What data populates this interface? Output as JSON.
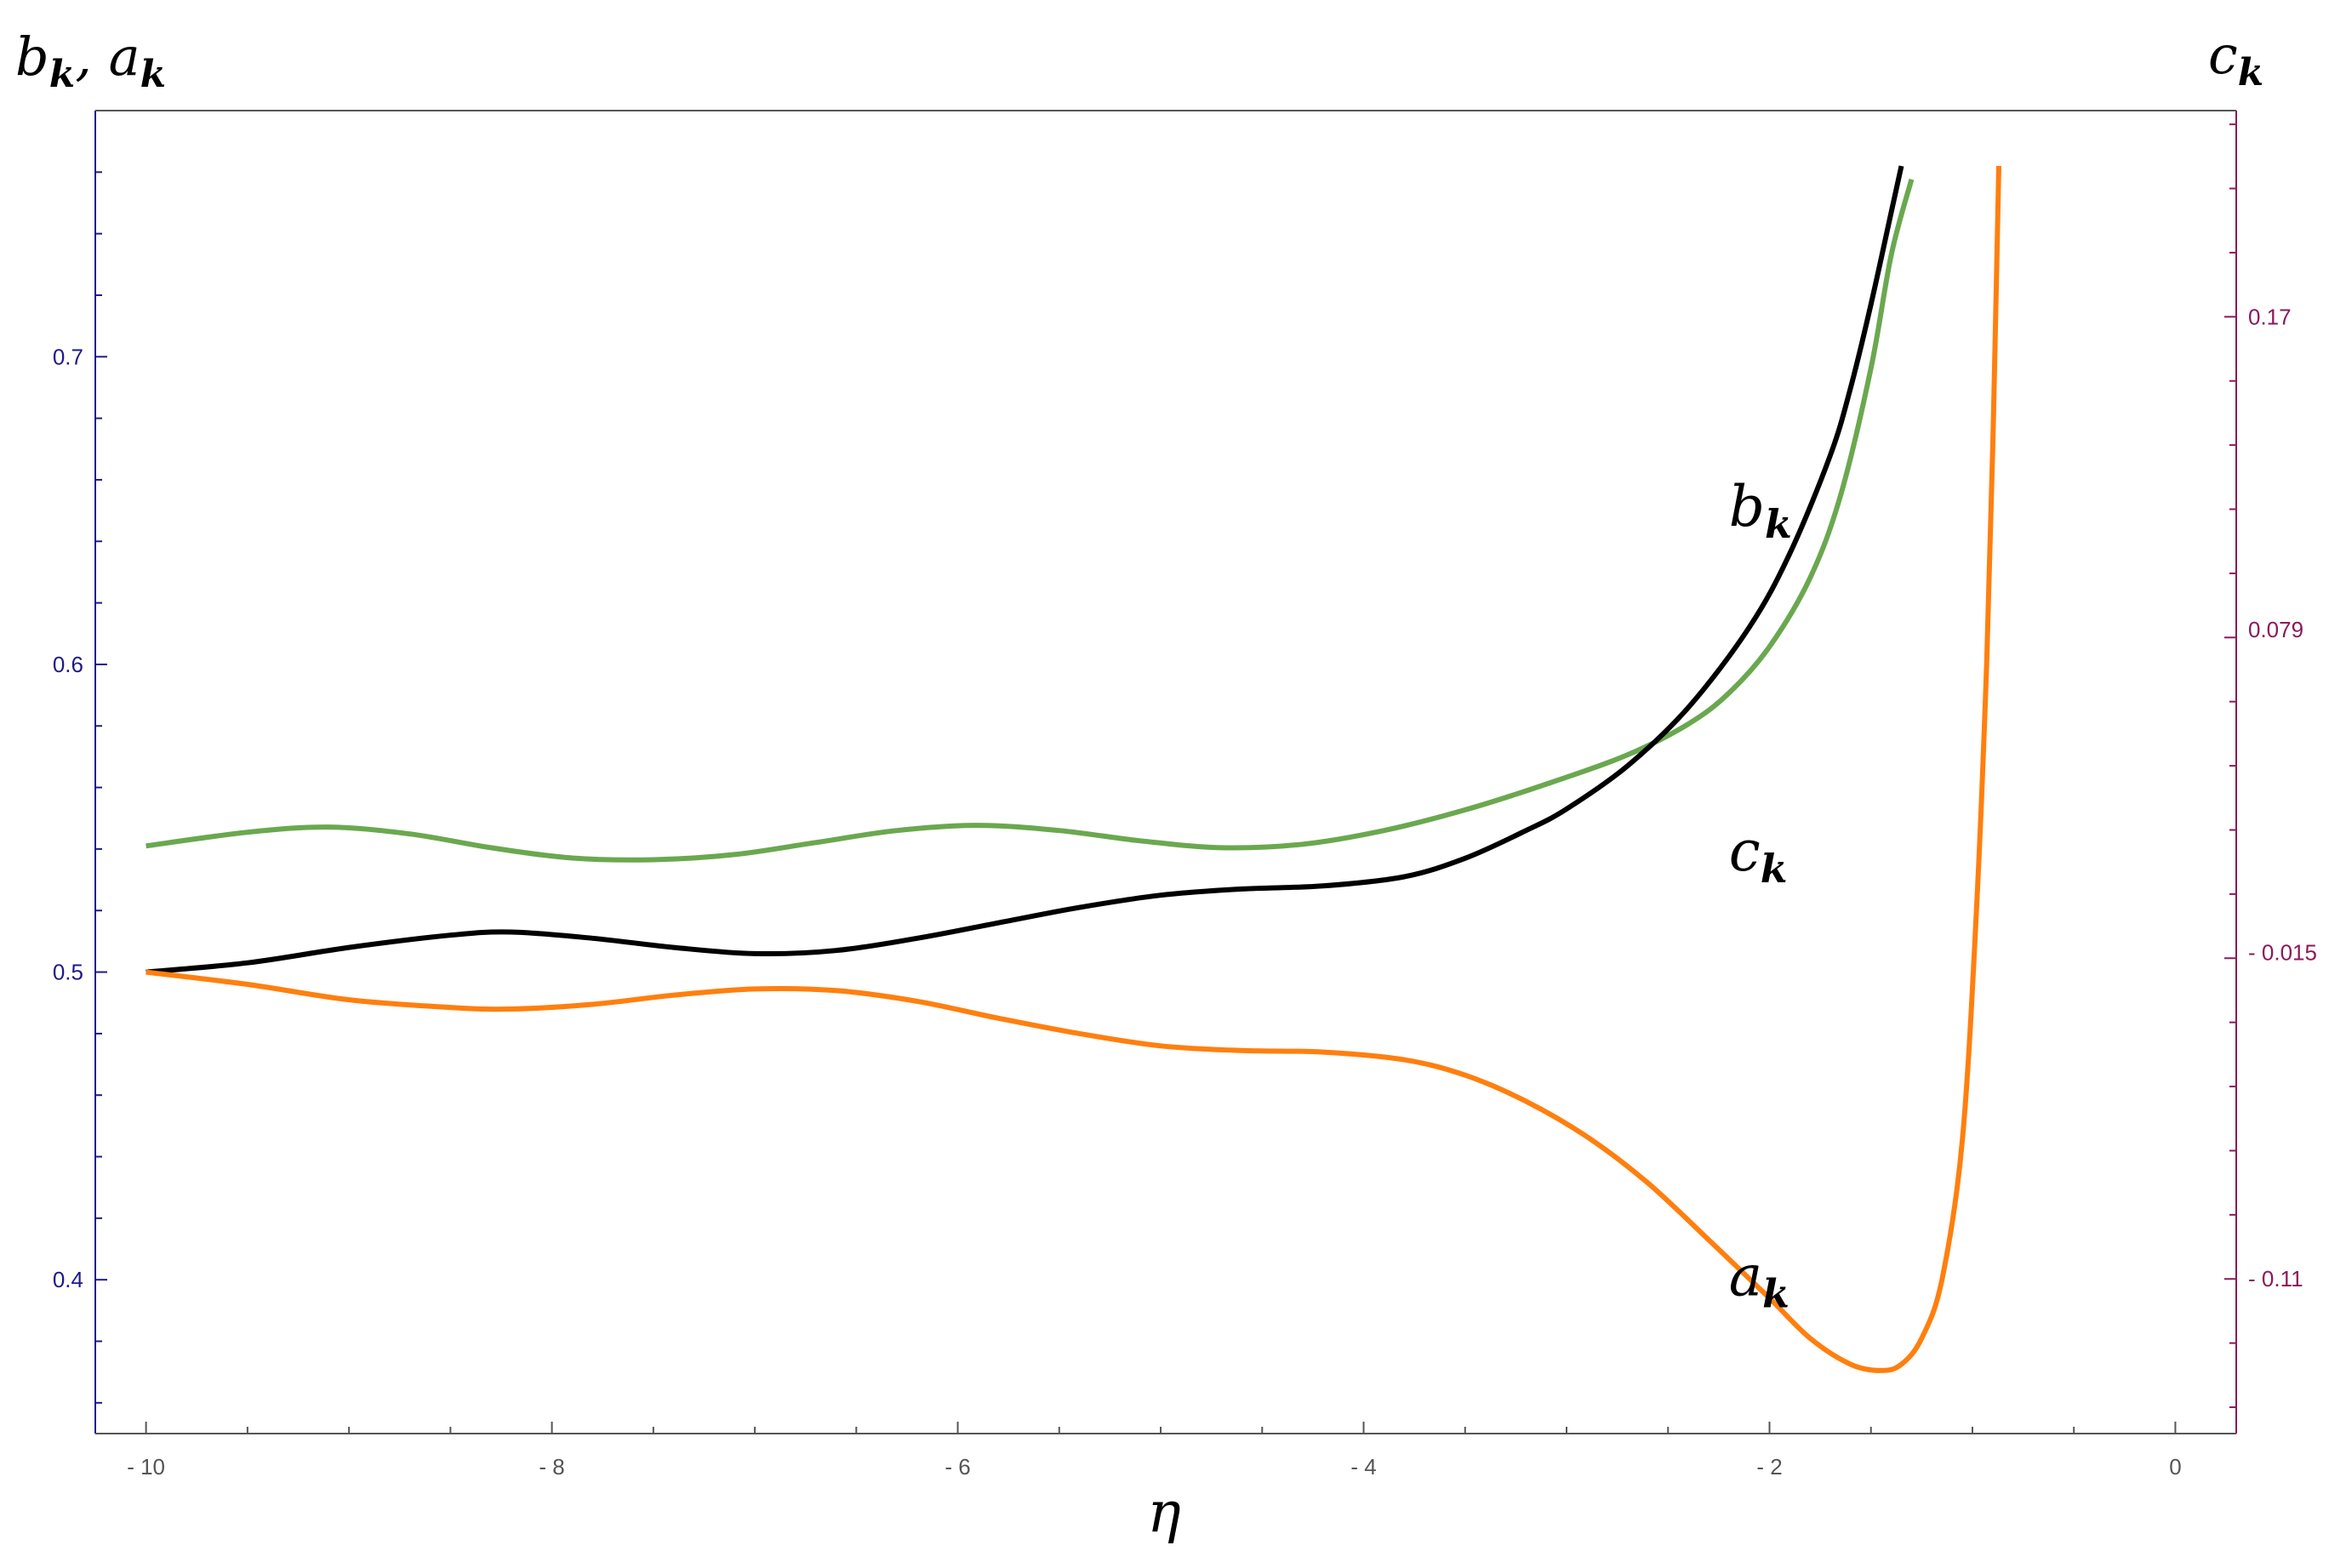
{
  "chart_data": {
    "type": "line",
    "left_axis_title": {
      "main": "b",
      "sub1": "k",
      "sep": ", ",
      "main2": "a",
      "sub2": "k"
    },
    "right_axis_title": {
      "main": "c",
      "sub": "k"
    },
    "xlabel": "η",
    "xlim": [
      -10.25,
      0.3
    ],
    "ylim_left": [
      0.35,
      0.78
    ],
    "ylim_right": [
      -0.155,
      0.23
    ],
    "x_ticks": [
      -10,
      -8,
      -6,
      -4,
      -2,
      0
    ],
    "x_tick_labels": [
      "- 10",
      "- 8",
      "- 6",
      "- 4",
      "- 2",
      "0"
    ],
    "y_left_ticks": [
      0.4,
      0.5,
      0.6,
      0.7
    ],
    "y_left_tick_labels": [
      "0.4",
      "0.5",
      "0.6",
      "0.7"
    ],
    "y_right_ticks": [
      -0.11,
      -0.015,
      0.079,
      0.17
    ],
    "y_right_tick_labels": [
      "- 0.11",
      "- 0.015",
      "0.079",
      "0.17"
    ],
    "colors": {
      "b": "#000000",
      "c": "#6aa84f",
      "a": "#ff7f0e",
      "left_axis": "#1f1a8a",
      "right_axis": "#8b1a5a",
      "bottom_axis": "#555555"
    },
    "series": [
      {
        "key": "b",
        "axis": "left",
        "points": [
          [
            -10,
            0.5
          ],
          [
            -9.5,
            0.503
          ],
          [
            -9,
            0.508
          ],
          [
            -8.5,
            0.512
          ],
          [
            -8.2,
            0.513
          ],
          [
            -7.8,
            0.511
          ],
          [
            -7.4,
            0.508
          ],
          [
            -7,
            0.506
          ],
          [
            -6.6,
            0.507
          ],
          [
            -6.2,
            0.511
          ],
          [
            -5.8,
            0.516
          ],
          [
            -5.4,
            0.521
          ],
          [
            -5,
            0.525
          ],
          [
            -4.6,
            0.527
          ],
          [
            -4.2,
            0.528
          ],
          [
            -3.8,
            0.531
          ],
          [
            -3.5,
            0.537
          ],
          [
            -3.2,
            0.546
          ],
          [
            -3,
            0.553
          ],
          [
            -2.7,
            0.567
          ],
          [
            -2.4,
            0.586
          ],
          [
            -2.1,
            0.612
          ],
          [
            -1.9,
            0.636
          ],
          [
            -1.7,
            0.668
          ],
          [
            -1.6,
            0.69
          ],
          [
            -1.5,
            0.717
          ],
          [
            -1.4,
            0.747
          ],
          [
            -1.35,
            0.762
          ]
        ]
      },
      {
        "key": "c",
        "axis": "right",
        "points": [
          [
            -10,
            0.016
          ],
          [
            -9.5,
            0.02
          ],
          [
            -9.1,
            0.0215
          ],
          [
            -8.7,
            0.0195
          ],
          [
            -8.3,
            0.0155
          ],
          [
            -7.9,
            0.0125
          ],
          [
            -7.5,
            0.012
          ],
          [
            -7.1,
            0.0135
          ],
          [
            -6.7,
            0.017
          ],
          [
            -6.3,
            0.0205
          ],
          [
            -5.9,
            0.022
          ],
          [
            -5.5,
            0.0205
          ],
          [
            -5.1,
            0.0175
          ],
          [
            -4.7,
            0.0155
          ],
          [
            -4.3,
            0.0165
          ],
          [
            -3.9,
            0.0205
          ],
          [
            -3.5,
            0.0265
          ],
          [
            -3.1,
            0.034
          ],
          [
            -2.7,
            0.0425
          ],
          [
            -2.4,
            0.0515
          ],
          [
            -2.2,
            0.0605
          ],
          [
            -2.0,
            0.074
          ],
          [
            -1.8,
            0.094
          ],
          [
            -1.65,
            0.118
          ],
          [
            -1.5,
            0.155
          ],
          [
            -1.4,
            0.188
          ],
          [
            -1.3,
            0.21
          ]
        ]
      },
      {
        "key": "a",
        "axis": "left",
        "points": [
          [
            -10,
            0.5
          ],
          [
            -9.5,
            0.496
          ],
          [
            -9,
            0.491
          ],
          [
            -8.5,
            0.4885
          ],
          [
            -8.2,
            0.488
          ],
          [
            -7.8,
            0.4895
          ],
          [
            -7.4,
            0.4925
          ],
          [
            -7,
            0.4945
          ],
          [
            -6.6,
            0.494
          ],
          [
            -6.2,
            0.4905
          ],
          [
            -5.8,
            0.485
          ],
          [
            -5.4,
            0.48
          ],
          [
            -5,
            0.476
          ],
          [
            -4.6,
            0.4745
          ],
          [
            -4.2,
            0.474
          ],
          [
            -3.8,
            0.4715
          ],
          [
            -3.5,
            0.4665
          ],
          [
            -3.2,
            0.458
          ],
          [
            -2.9,
            0.4465
          ],
          [
            -2.6,
            0.4315
          ],
          [
            -2.3,
            0.413
          ],
          [
            -2.0,
            0.394
          ],
          [
            -1.8,
            0.381
          ],
          [
            -1.6,
            0.3725
          ],
          [
            -1.45,
            0.3705
          ],
          [
            -1.35,
            0.3725
          ],
          [
            -1.25,
            0.381
          ],
          [
            -1.15,
            0.4
          ],
          [
            -1.05,
            0.445
          ],
          [
            -0.98,
            0.52
          ],
          [
            -0.93,
            0.6
          ],
          [
            -0.9,
            0.67
          ],
          [
            -0.88,
            0.73
          ],
          [
            -0.87,
            0.762
          ]
        ]
      }
    ],
    "annotations": [
      {
        "series": "b",
        "main": "b",
        "sub": "k",
        "x": -2.2,
        "y": 0.645,
        "axis": "left"
      },
      {
        "series": "c",
        "main": "c",
        "sub": "k",
        "x": -2.2,
        "y": 0.533,
        "axis": "left"
      },
      {
        "series": "a",
        "main": "a",
        "sub": "k",
        "x": -2.2,
        "y": 0.395,
        "axis": "left"
      }
    ]
  }
}
